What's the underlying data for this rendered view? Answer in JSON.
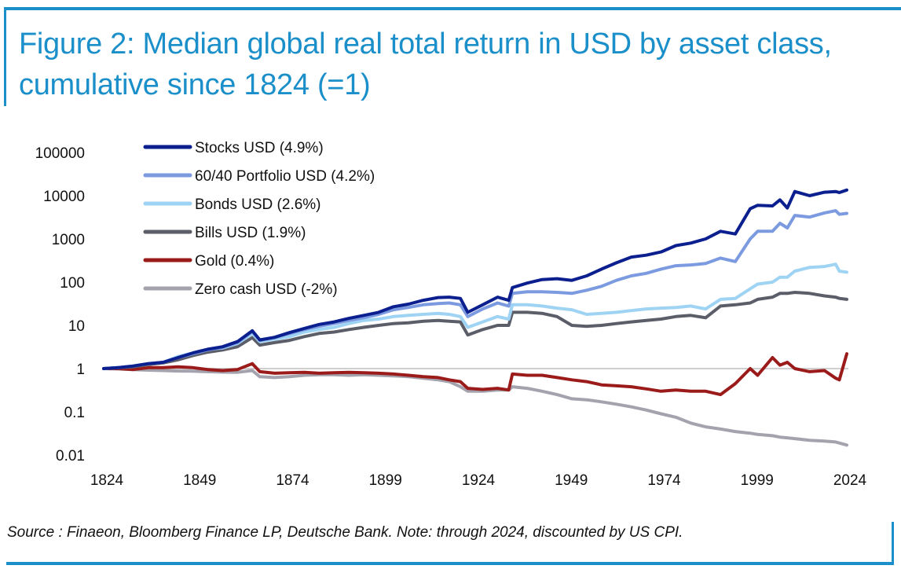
{
  "title": "Figure 2: Median global real total return in USD by asset class, cumulative since 1824 (=1)",
  "source": "Source : Finaeon, Bloomberg Finance LP, Deutsche Bank. Note: through 2024, discounted by US CPI.",
  "colors": {
    "accent": "#1a8fc9"
  },
  "chart_data": {
    "type": "line",
    "title": "Median global real total return in USD by asset class, cumulative since 1824 (=1)",
    "xlabel": "",
    "ylabel": "",
    "yscale": "log",
    "ylim": [
      0.01,
      100000
    ],
    "xlim": [
      1824,
      2024
    ],
    "xticks": [
      "1824",
      "1849",
      "1874",
      "1899",
      "1924",
      "1949",
      "1974",
      "1999",
      "2024"
    ],
    "yticks": [
      "100000",
      "10000",
      "1000",
      "100",
      "10",
      "1",
      "0.1",
      "0.01"
    ],
    "reference_line": 1,
    "grid": false,
    "legend_position": "top-left",
    "x": [
      1824,
      1828,
      1832,
      1836,
      1840,
      1844,
      1848,
      1852,
      1856,
      1860,
      1864,
      1866,
      1870,
      1874,
      1878,
      1882,
      1886,
      1890,
      1894,
      1898,
      1902,
      1906,
      1910,
      1914,
      1917,
      1920,
      1922,
      1926,
      1930,
      1933,
      1934,
      1938,
      1942,
      1946,
      1950,
      1954,
      1958,
      1962,
      1966,
      1970,
      1974,
      1978,
      1982,
      1986,
      1990,
      1994,
      1998,
      2000,
      2004,
      2006,
      2008,
      2010,
      2014,
      2018,
      2021,
      2022,
      2024
    ],
    "series": [
      {
        "name": "Stocks USD (4.9%)",
        "color": "#0b1f8f",
        "values": [
          1,
          1.05,
          1.15,
          1.3,
          1.4,
          1.8,
          2.3,
          2.8,
          3.2,
          4.2,
          7.5,
          4.6,
          5.3,
          6.8,
          8.5,
          10.5,
          12,
          14.5,
          17,
          20,
          27,
          31,
          38,
          44,
          45,
          42,
          20,
          30,
          45,
          38,
          75,
          95,
          115,
          120,
          110,
          140,
          200,
          280,
          380,
          420,
          500,
          700,
          800,
          1000,
          1500,
          1300,
          5000,
          6000,
          5800,
          8000,
          5200,
          12500,
          10000,
          12000,
          12500,
          11800,
          13500
        ]
      },
      {
        "name": "60/40 Portfolio USD (4.2%)",
        "color": "#7b9ae0",
        "values": [
          1,
          1.05,
          1.15,
          1.3,
          1.4,
          1.8,
          2.2,
          2.7,
          3.1,
          4,
          7.2,
          4.5,
          5.2,
          6.5,
          8,
          9.5,
          11,
          13,
          15,
          18,
          23,
          26,
          30,
          32,
          33,
          30,
          16,
          24,
          33,
          28,
          55,
          60,
          60,
          58,
          55,
          65,
          80,
          110,
          140,
          160,
          200,
          240,
          250,
          270,
          360,
          300,
          1000,
          1500,
          1500,
          2300,
          1800,
          3500,
          3200,
          4000,
          4500,
          3700,
          3900
        ]
      },
      {
        "name": "Bonds USD (2.6%)",
        "color": "#9fd3f3",
        "values": [
          1,
          1.05,
          1.15,
          1.3,
          1.4,
          1.9,
          2.3,
          2.8,
          3,
          3.8,
          6.5,
          4.2,
          4.8,
          5.5,
          7,
          8,
          9,
          11,
          13,
          14,
          16,
          17,
          18,
          19,
          18,
          16,
          9,
          12,
          16,
          14,
          30,
          30,
          28,
          25,
          23,
          18,
          19,
          20,
          22,
          24,
          25,
          26,
          28,
          24,
          40,
          42,
          70,
          90,
          100,
          130,
          130,
          180,
          220,
          230,
          260,
          180,
          170
        ]
      },
      {
        "name": "Bills USD (1.9%)",
        "color": "#5b5d68",
        "values": [
          1,
          1.05,
          1.1,
          1.25,
          1.35,
          1.6,
          2,
          2.4,
          2.7,
          3.2,
          5.2,
          3.5,
          4,
          4.5,
          5.5,
          6.5,
          7,
          8,
          9,
          10,
          11,
          11.5,
          12.5,
          13,
          12.5,
          12,
          6,
          8,
          10,
          10,
          20,
          20,
          19,
          16,
          10,
          9.5,
          10,
          11,
          12,
          13,
          14,
          16,
          17,
          15,
          28,
          30,
          33,
          40,
          45,
          55,
          55,
          58,
          55,
          48,
          45,
          42,
          40
        ]
      },
      {
        "name": "Gold (0.4%)",
        "color": "#9b1b1b",
        "values": [
          1,
          1,
          0.95,
          1.05,
          1.05,
          1.1,
          1.05,
          0.95,
          0.9,
          0.95,
          1.3,
          0.85,
          0.78,
          0.8,
          0.82,
          0.78,
          0.8,
          0.82,
          0.8,
          0.78,
          0.75,
          0.7,
          0.65,
          0.62,
          0.55,
          0.5,
          0.35,
          0.33,
          0.35,
          0.32,
          0.75,
          0.7,
          0.7,
          0.62,
          0.55,
          0.5,
          0.42,
          0.4,
          0.38,
          0.34,
          0.3,
          0.32,
          0.3,
          0.3,
          0.25,
          0.45,
          1.0,
          0.7,
          1.8,
          1.2,
          1.4,
          1.0,
          0.85,
          0.9,
          0.6,
          0.55,
          2.2
        ]
      },
      {
        "name": "Zero cash USD (-2%)",
        "color": "#a3a2ad",
        "values": [
          1,
          0.98,
          0.95,
          0.92,
          0.9,
          0.88,
          0.87,
          0.85,
          0.83,
          0.82,
          0.9,
          0.65,
          0.62,
          0.65,
          0.7,
          0.72,
          0.72,
          0.7,
          0.72,
          0.7,
          0.68,
          0.65,
          0.6,
          0.55,
          0.5,
          0.38,
          0.3,
          0.3,
          0.32,
          0.32,
          0.38,
          0.35,
          0.3,
          0.25,
          0.2,
          0.19,
          0.17,
          0.15,
          0.13,
          0.11,
          0.09,
          0.075,
          0.055,
          0.045,
          0.04,
          0.035,
          0.032,
          0.03,
          0.028,
          0.026,
          0.025,
          0.024,
          0.022,
          0.021,
          0.02,
          0.019,
          0.017
        ]
      }
    ]
  }
}
